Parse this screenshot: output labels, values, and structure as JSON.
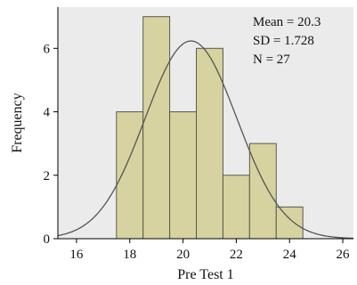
{
  "chart_data": {
    "type": "bar",
    "xlabel": "Pre Test 1",
    "ylabel": "Frequency",
    "xlim": [
      15.3,
      26.4
    ],
    "ylim": [
      0,
      7.3
    ],
    "x_ticks": [
      16,
      18,
      20,
      22,
      24,
      26
    ],
    "y_ticks": [
      0,
      2,
      4,
      6
    ],
    "bins": [
      {
        "start": 17.5,
        "end": 18.5,
        "count": 4
      },
      {
        "start": 18.5,
        "end": 19.5,
        "count": 7
      },
      {
        "start": 19.5,
        "end": 20.5,
        "count": 4
      },
      {
        "start": 20.5,
        "end": 21.5,
        "count": 6
      },
      {
        "start": 21.5,
        "end": 22.5,
        "count": 2
      },
      {
        "start": 22.5,
        "end": 23.5,
        "count": 3
      },
      {
        "start": 23.5,
        "end": 24.5,
        "count": 1
      }
    ],
    "normal_curve": {
      "mean": 20.3,
      "sd": 1.728,
      "n": 27,
      "bin_width": 1
    },
    "stats_lines": [
      "Mean = 20.3",
      "SD = 1.728",
      "N = 27"
    ],
    "grid": false,
    "colors": {
      "plot_bg": "#ebebeb",
      "bar_fill": "#d6d3a0",
      "bar_stroke": "#5a5a4a",
      "curve": "#555555"
    }
  }
}
